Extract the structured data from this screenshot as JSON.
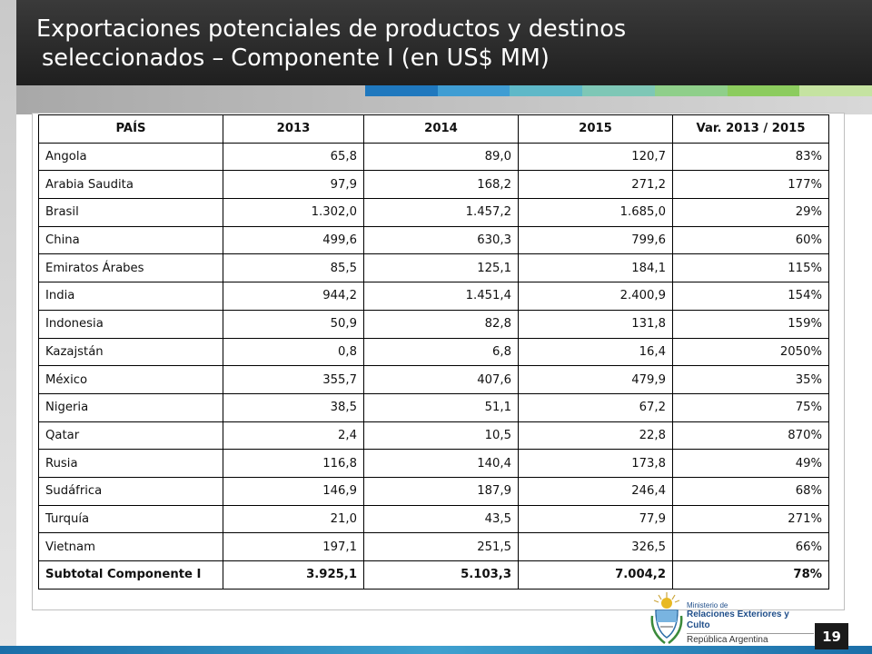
{
  "title": {
    "line1": "Exportaciones potenciales de productos y destinos",
    "line2": "seleccionados – Componente I (en US$ MM)"
  },
  "accent_stripes": [
    "#1f78be",
    "#3f9dd3",
    "#5eb8c8",
    "#7ec7b6",
    "#8fcf8a",
    "#8ccc5e",
    "#c5e3a1"
  ],
  "table": {
    "headers": [
      "PAÍS",
      "2013",
      "2014",
      "2015",
      "Var. 2013 / 2015"
    ],
    "rows": [
      [
        "Angola",
        "65,8",
        "89,0",
        "120,7",
        "83%"
      ],
      [
        "Arabia Saudita",
        "97,9",
        "168,2",
        "271,2",
        "177%"
      ],
      [
        "Brasil",
        "1.302,0",
        "1.457,2",
        "1.685,0",
        "29%"
      ],
      [
        "China",
        "499,6",
        "630,3",
        "799,6",
        "60%"
      ],
      [
        "Emiratos Árabes",
        "85,5",
        "125,1",
        "184,1",
        "115%"
      ],
      [
        "India",
        "944,2",
        "1.451,4",
        "2.400,9",
        "154%"
      ],
      [
        "Indonesia",
        "50,9",
        "82,8",
        "131,8",
        "159%"
      ],
      [
        "Kazajstán",
        "0,8",
        "6,8",
        "16,4",
        "2050%"
      ],
      [
        "México",
        "355,7",
        "407,6",
        "479,9",
        "35%"
      ],
      [
        "Nigeria",
        "38,5",
        "51,1",
        "67,2",
        "75%"
      ],
      [
        "Qatar",
        "2,4",
        "10,5",
        "22,8",
        "870%"
      ],
      [
        "Rusia",
        "116,8",
        "140,4",
        "173,8",
        "49%"
      ],
      [
        "Sudáfrica",
        "146,9",
        "187,9",
        "246,4",
        "68%"
      ],
      [
        "Turquía",
        "21,0",
        "43,5",
        "77,9",
        "271%"
      ],
      [
        "Vietnam",
        "197,1",
        "251,5",
        "326,5",
        "66%"
      ],
      [
        "Subtotal Componente I",
        "3.925,1",
        "5.103,3",
        "7.004,2",
        "78%"
      ]
    ]
  },
  "page_number": "19",
  "logo": {
    "icon": "argentina-coat-of-arms-icon",
    "ministry_prefix": "Ministerio de",
    "ministry_name": "Relaciones Exteriores y Culto",
    "country": "República Argentina"
  }
}
